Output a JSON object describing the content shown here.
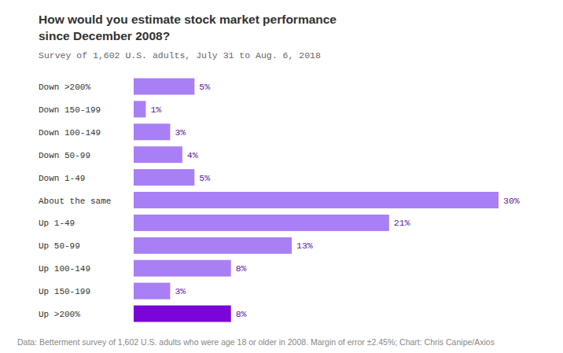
{
  "chart_data": {
    "type": "bar",
    "orientation": "horizontal",
    "title": "How would you estimate stock market performance since December 2008?",
    "subtitle": "Survey of 1,602 U.S. adults, July 31 to Aug. 6, 2018",
    "caption": "Data: Betterment survey of 1,602 U.S. adults who were age 18 or older in 2008. Margin of error ±2.45%; Chart: Chris Canipe/Axios",
    "categories": [
      "Down >200%",
      "Down 150-199",
      "Down 100-149",
      "Down 50-99",
      "Down 1-49",
      "About the same",
      "Up 1-49",
      "Up 50-99",
      "Up 100-149",
      "Up 150-199",
      "Up >200%"
    ],
    "values": [
      5,
      1,
      3,
      4,
      5,
      30,
      21,
      13,
      8,
      3,
      8
    ],
    "value_labels": [
      "5%",
      "1%",
      "3%",
      "4%",
      "5%",
      "30%",
      "21%",
      "13%",
      "8%",
      "3%",
      "8%"
    ],
    "colors": [
      "#a97ff5",
      "#a97ff5",
      "#a97ff5",
      "#a97ff5",
      "#a97ff5",
      "#a97ff5",
      "#a97ff5",
      "#a97ff5",
      "#a97ff5",
      "#a97ff5",
      "#7a05d6"
    ],
    "ylim": [
      0,
      30
    ],
    "data_labels": true,
    "tick_labels": "x"
  }
}
